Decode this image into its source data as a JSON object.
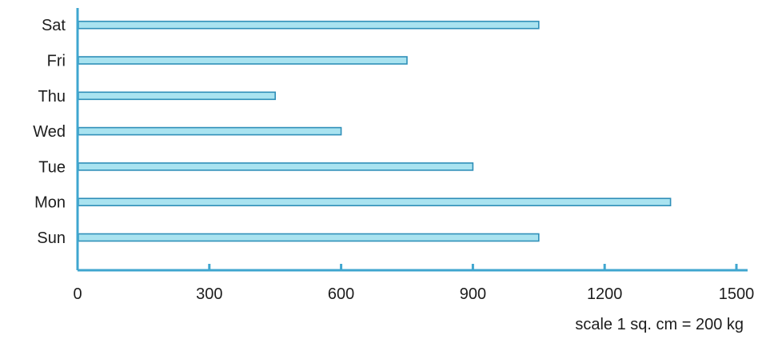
{
  "chart_data": {
    "type": "bar",
    "orientation": "horizontal",
    "categories": [
      "Sun",
      "Mon",
      "Tue",
      "Wed",
      "Thu",
      "Fri",
      "Sat"
    ],
    "values": [
      1050,
      1350,
      900,
      600,
      450,
      750,
      1050
    ],
    "x_ticks": [
      "0",
      "300",
      "600",
      "900",
      "1200",
      "1500"
    ],
    "xlim": [
      0,
      1500
    ],
    "title": "",
    "xlabel": "",
    "ylabel": "",
    "grid": false,
    "note": "scale 1 sq. cm = 200 kg",
    "colors": {
      "bar_fill": "#a9e3f0",
      "bar_stroke": "#2f8fb8",
      "axis": "#3fa6cf"
    }
  }
}
